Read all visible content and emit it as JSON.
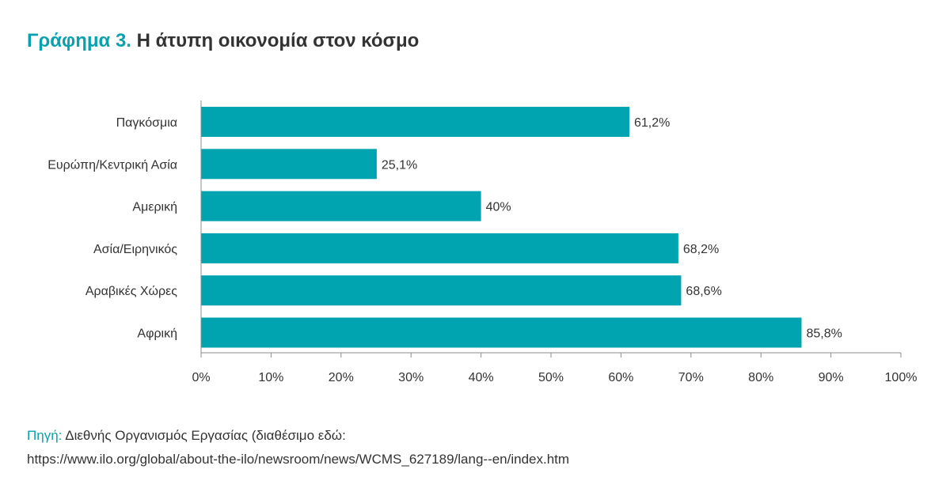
{
  "title": {
    "lead": "Γράφημα 3.",
    "rest": "Η άτυπη οικονομία στον κόσμο"
  },
  "colors": {
    "accent": "#0aa1ae",
    "bar": "#00a3b0",
    "text": "#333333",
    "axis": "#8c8c8c"
  },
  "chart_data": {
    "type": "bar",
    "orientation": "horizontal",
    "categories": [
      "Παγκόσμια",
      "Ευρώπη/Κεντρική Ασία",
      "Αμερική",
      "Ασία/Ειρηνικός",
      "Αραβικές Χώρες",
      "Αφρική"
    ],
    "values": [
      61.2,
      25.1,
      40,
      68.2,
      68.6,
      85.8
    ],
    "value_labels": [
      "61,2%",
      "25,1%",
      "40%",
      "68,2%",
      "68,6%",
      "85,8%"
    ],
    "xlim": [
      0,
      100
    ],
    "xticks": [
      "0%",
      "10%",
      "20%",
      "30%",
      "40%",
      "50%",
      "60%",
      "70%",
      "80%",
      "90%",
      "100%"
    ],
    "grid": false
  },
  "source": {
    "label": "Πηγή:",
    "text": "Διεθνής Οργανισμός Εργασίας (διαθέσιμο εδώ:",
    "url": "https://www.ilo.org/global/about-the-ilo/newsroom/news/WCMS_627189/lang--en/index.htm"
  }
}
